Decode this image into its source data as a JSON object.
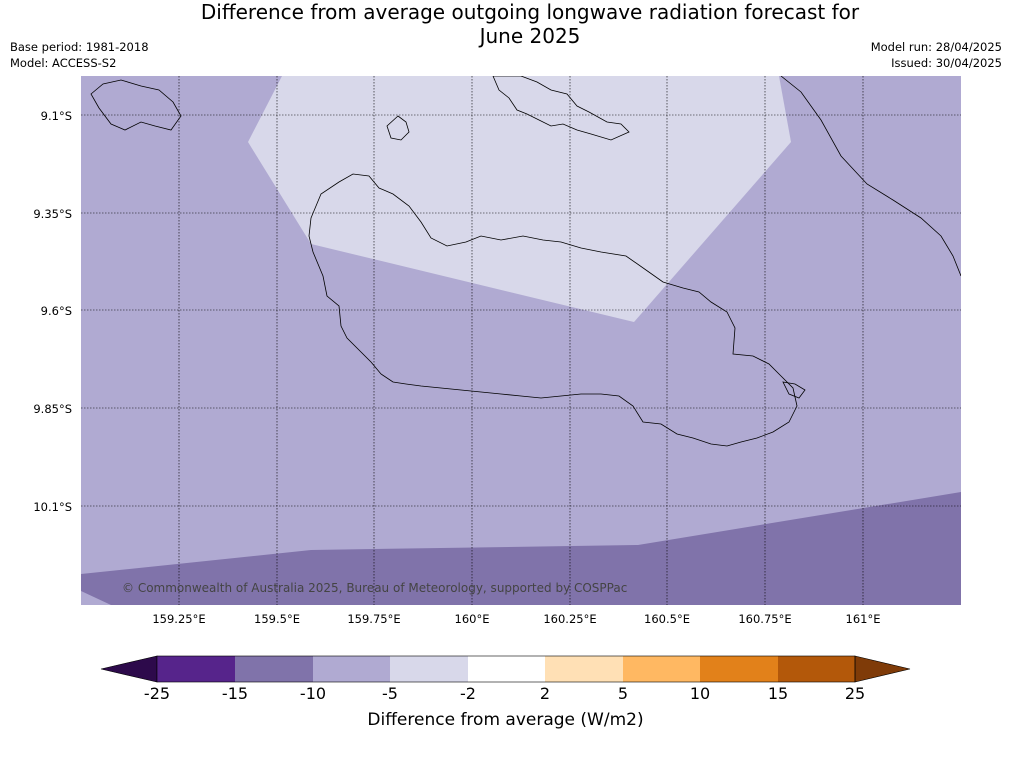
{
  "title_line1": "Difference from average outgoing longwave radiation forecast for",
  "title_line2": "June 2025",
  "base_period": "Base period: 1981-2018",
  "model": "Model: ACCESS-S2",
  "model_run": "Model run: 28/04/2025",
  "issued": "Issued: 30/04/2025",
  "copyright": "© Commonwealth of Australia 2025, Bureau of Meteorology, supported by COSPPac",
  "map": {
    "lon_range": [
      159.0,
      161.25
    ],
    "lat_range": [
      -10.35,
      -9.0
    ],
    "lat_ticks": [
      {
        "value": -9.1,
        "label": "9.1°S"
      },
      {
        "value": -9.35,
        "label": "9.35°S"
      },
      {
        "value": -9.6,
        "label": "9.6°S"
      },
      {
        "value": -9.85,
        "label": "9.85°S"
      },
      {
        "value": -10.1,
        "label": "10.1°S"
      }
    ],
    "lon_ticks": [
      {
        "value": 159.25,
        "label": "159.25°E"
      },
      {
        "value": 159.5,
        "label": "159.5°E"
      },
      {
        "value": 159.75,
        "label": "159.75°E"
      },
      {
        "value": 160.0,
        "label": "160°E"
      },
      {
        "value": 160.25,
        "label": "160.25°E"
      },
      {
        "value": 160.5,
        "label": "160.5°E"
      },
      {
        "value": 160.75,
        "label": "160.75°E"
      },
      {
        "value": 161.0,
        "label": "161°E"
      }
    ],
    "grid": true,
    "colors": {
      "-5 to -2": "#d8d8ea",
      "-10 to -5": "#b0aad2",
      "-15 to -10": "#8073aa",
      "coastline": "#000000"
    }
  },
  "colorbar": {
    "label": "Difference from average (W/m2)",
    "ticks": [
      "-25",
      "-15",
      "-10",
      "-5",
      "-2",
      "2",
      "5",
      "10",
      "15",
      "25"
    ],
    "colors": [
      "#56248b",
      "#8073aa",
      "#b0aad2",
      "#d8d8ea",
      "#ffffff",
      "#ffe0b5",
      "#ffb862",
      "#e2811a",
      "#b3580a"
    ],
    "extend_min_color": "#2d0a4b",
    "extend_max_color": "#7f3b08"
  }
}
